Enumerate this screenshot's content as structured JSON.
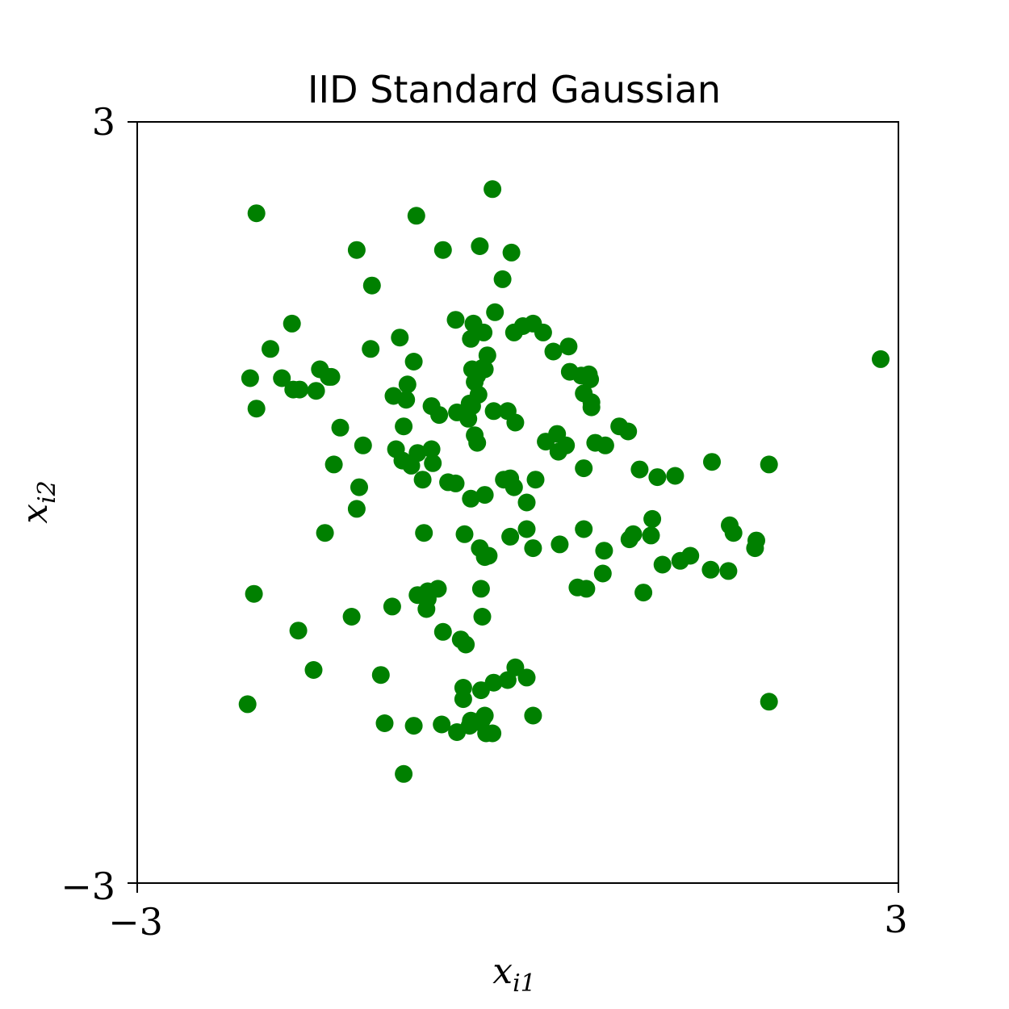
{
  "chart_data": {
    "type": "scatter",
    "title": "IID Standard Gaussian",
    "xlabel": {
      "base": "x",
      "sub": "i1"
    },
    "ylabel": {
      "base": "x",
      "sub": "i2"
    },
    "xlim": [
      -3,
      3
    ],
    "ylim": [
      -3,
      3
    ],
    "xticks": [
      "−3",
      "3"
    ],
    "yticks": [
      "−3",
      "3"
    ],
    "grid": false,
    "point_color": "#008000",
    "points": [
      [
        -2.06,
        2.28
      ],
      [
        -0.8,
        2.26
      ],
      [
        -0.2,
        2.47
      ],
      [
        -1.27,
        1.99
      ],
      [
        -0.59,
        1.99
      ],
      [
        -0.3,
        2.02
      ],
      [
        -0.05,
        1.97
      ],
      [
        -1.15,
        1.71
      ],
      [
        -0.12,
        1.76
      ],
      [
        -0.49,
        1.44
      ],
      [
        -0.18,
        1.5
      ],
      [
        -0.37,
        1.29
      ],
      [
        -0.27,
        1.34
      ],
      [
        -0.35,
        1.41
      ],
      [
        -0.03,
        1.34
      ],
      [
        -1.78,
        1.41
      ],
      [
        -0.93,
        1.3
      ],
      [
        -1.16,
        1.21
      ],
      [
        -0.82,
        1.11
      ],
      [
        -1.95,
        1.21
      ],
      [
        -1.56,
        1.05
      ],
      [
        -1.49,
        0.99
      ],
      [
        -1.77,
        0.89
      ],
      [
        -1.86,
        0.98
      ],
      [
        -2.11,
        0.98
      ],
      [
        -1.72,
        0.89
      ],
      [
        -1.47,
        0.99
      ],
      [
        -0.24,
        1.16
      ],
      [
        -0.28,
        1.06
      ],
      [
        -0.32,
        1.0
      ],
      [
        -0.36,
        1.05
      ],
      [
        -0.34,
        0.95
      ],
      [
        -0.26,
        1.05
      ],
      [
        0.04,
        1.39
      ],
      [
        0.2,
        1.34
      ],
      [
        0.12,
        1.41
      ],
      [
        0.28,
        1.19
      ],
      [
        0.4,
        1.23
      ],
      [
        0.56,
        1.01
      ],
      [
        0.41,
        1.03
      ],
      [
        0.52,
        0.86
      ],
      [
        0.57,
        0.97
      ],
      [
        2.86,
        1.13
      ],
      [
        0.5,
        1.0
      ],
      [
        -1.59,
        0.88
      ],
      [
        -0.87,
        0.93
      ],
      [
        -0.88,
        0.81
      ],
      [
        -2.06,
        0.74
      ],
      [
        -0.98,
        0.84
      ],
      [
        -0.68,
        0.76
      ],
      [
        -0.31,
        0.85
      ],
      [
        -0.48,
        0.71
      ],
      [
        -0.36,
        0.76
      ],
      [
        -0.08,
        0.72
      ],
      [
        -0.62,
        0.69
      ],
      [
        -0.38,
        0.78
      ],
      [
        -0.19,
        0.72
      ],
      [
        -0.39,
        0.66
      ],
      [
        0.58,
        0.79
      ],
      [
        0.58,
        0.75
      ],
      [
        -1.4,
        0.59
      ],
      [
        -0.9,
        0.6
      ],
      [
        -0.96,
        0.42
      ],
      [
        -1.22,
        0.45
      ],
      [
        -1.45,
        0.3
      ],
      [
        -0.79,
        0.39
      ],
      [
        -0.91,
        0.33
      ],
      [
        -0.34,
        0.53
      ],
      [
        -0.32,
        0.47
      ],
      [
        -0.02,
        0.63
      ],
      [
        0.22,
        0.48
      ],
      [
        0.32,
        0.4
      ],
      [
        0.31,
        0.54
      ],
      [
        0.38,
        0.45
      ],
      [
        0.8,
        0.6
      ],
      [
        0.87,
        0.56
      ],
      [
        0.61,
        0.47
      ],
      [
        0.69,
        0.45
      ],
      [
        0.96,
        0.26
      ],
      [
        1.1,
        0.2
      ],
      [
        1.24,
        0.21
      ],
      [
        1.53,
        0.32
      ],
      [
        1.98,
        0.3
      ],
      [
        0.52,
        0.27
      ],
      [
        -0.68,
        0.42
      ],
      [
        -0.84,
        0.29
      ],
      [
        -0.75,
        0.18
      ],
      [
        -1.25,
        0.12
      ],
      [
        -0.55,
        0.16
      ],
      [
        -0.67,
        0.31
      ],
      [
        -0.49,
        0.15
      ],
      [
        -0.11,
        0.18
      ],
      [
        -0.03,
        0.12
      ],
      [
        0.07,
        0.0
      ],
      [
        0.14,
        0.18
      ],
      [
        -0.26,
        0.06
      ],
      [
        -0.06,
        0.19
      ],
      [
        -0.37,
        0.03
      ],
      [
        -1.27,
        -0.05
      ],
      [
        -0.74,
        -0.24
      ],
      [
        -0.42,
        -0.25
      ],
      [
        -1.52,
        -0.24
      ],
      [
        -0.3,
        -0.36
      ],
      [
        -0.23,
        -0.42
      ],
      [
        0.12,
        -0.36
      ],
      [
        0.07,
        -0.21
      ],
      [
        -0.06,
        -0.27
      ],
      [
        -0.26,
        -0.43
      ],
      [
        0.33,
        -0.33
      ],
      [
        0.68,
        -0.38
      ],
      [
        0.88,
        -0.29
      ],
      [
        0.91,
        -0.25
      ],
      [
        1.06,
        -0.13
      ],
      [
        1.36,
        -0.42
      ],
      [
        1.87,
        -0.36
      ],
      [
        1.88,
        -0.3
      ],
      [
        1.52,
        -0.53
      ],
      [
        0.99,
        -0.71
      ],
      [
        1.66,
        -0.54
      ],
      [
        1.14,
        -0.49
      ],
      [
        1.28,
        -0.46
      ],
      [
        1.05,
        -0.26
      ],
      [
        1.67,
        -0.18
      ],
      [
        1.7,
        -0.24
      ],
      [
        0.52,
        -0.21
      ],
      [
        -2.08,
        -0.72
      ],
      [
        -0.79,
        -0.73
      ],
      [
        -0.29,
        -0.68
      ],
      [
        -0.28,
        -0.9
      ],
      [
        0.47,
        -0.67
      ],
      [
        0.54,
        -0.68
      ],
      [
        0.67,
        -0.56
      ],
      [
        -1.31,
        -0.9
      ],
      [
        -0.99,
        -0.82
      ],
      [
        -0.72,
        -0.84
      ],
      [
        -0.71,
        -0.76
      ],
      [
        -0.71,
        -0.7
      ],
      [
        -0.63,
        -0.68
      ],
      [
        -1.73,
        -1.01
      ],
      [
        -1.61,
        -1.32
      ],
      [
        -0.45,
        -1.08
      ],
      [
        -0.59,
        -1.02
      ],
      [
        -0.41,
        -1.12
      ],
      [
        0.07,
        -1.38
      ],
      [
        -0.08,
        -1.4
      ],
      [
        -0.19,
        -1.42
      ],
      [
        -0.29,
        -1.48
      ],
      [
        -0.43,
        -1.46
      ],
      [
        -0.43,
        -1.55
      ],
      [
        -0.02,
        -1.3
      ],
      [
        -1.08,
        -1.36
      ],
      [
        1.98,
        -1.57
      ],
      [
        -2.13,
        -1.59
      ],
      [
        -0.37,
        -1.72
      ],
      [
        -0.48,
        -1.81
      ],
      [
        -1.05,
        -1.74
      ],
      [
        -0.33,
        -1.73
      ],
      [
        0.12,
        -1.68
      ],
      [
        -0.25,
        -1.82
      ],
      [
        -0.6,
        -1.75
      ],
      [
        -0.82,
        -1.76
      ],
      [
        -0.38,
        -1.76
      ],
      [
        -0.26,
        -1.68
      ],
      [
        -0.28,
        -1.71
      ],
      [
        -0.2,
        -1.82
      ],
      [
        -0.9,
        -2.14
      ]
    ]
  }
}
